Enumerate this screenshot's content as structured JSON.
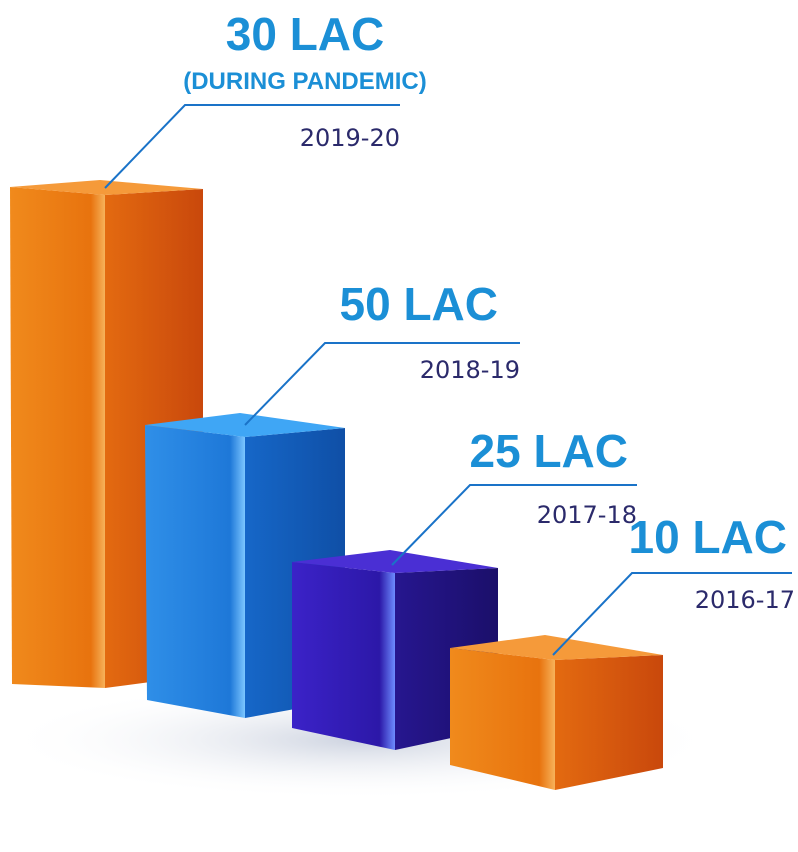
{
  "items": [
    {
      "amount": "30 LAC",
      "note": "(DURING PANDEMIC)",
      "period": "2019-20"
    },
    {
      "amount": "50 LAC",
      "period": "2018-19"
    },
    {
      "amount": "25 LAC",
      "period": "2017-18"
    },
    {
      "amount": "10 LAC",
      "period": "2016-17"
    }
  ]
}
